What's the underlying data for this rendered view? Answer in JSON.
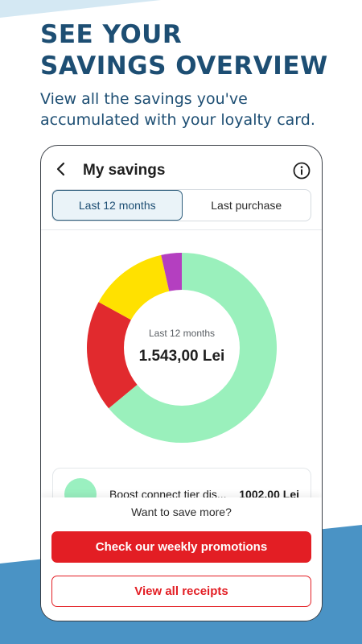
{
  "promo": {
    "headline_line1": "SEE YOUR",
    "headline_line2": "SAVINGS OVERVIEW",
    "subtitle": "View all the savings you've accumulated with your loyalty card."
  },
  "app": {
    "title": "My savings",
    "back_icon": "back-arrow-icon",
    "info_icon": "info-icon"
  },
  "tabs": [
    {
      "label": "Last 12 months",
      "active": true
    },
    {
      "label": "Last purchase",
      "active": false
    }
  ],
  "chart_data": {
    "type": "pie",
    "center_label": "Last 12 months",
    "center_value": "1.543,00 Lei",
    "slices": [
      {
        "color": "#9af0bc",
        "value": 64
      },
      {
        "color": "#e12a2e",
        "value": 19
      },
      {
        "color": "#ffe100",
        "value": 13.5
      },
      {
        "color": "#b43fc0",
        "value": 3.5
      }
    ]
  },
  "savings_list": [
    {
      "label": "Boost connect tier dis...",
      "value": "1002,00 Lei"
    }
  ],
  "bottom": {
    "prompt": "Want to save more?",
    "primary_button": "Check our weekly promotions",
    "secondary_button": "View all receipts"
  },
  "colors": {
    "brand_blue": "#1d4e73",
    "accent_red": "#e31e24",
    "background_blue": "#4a93c5",
    "background_light_blue": "#d4e8f3"
  }
}
